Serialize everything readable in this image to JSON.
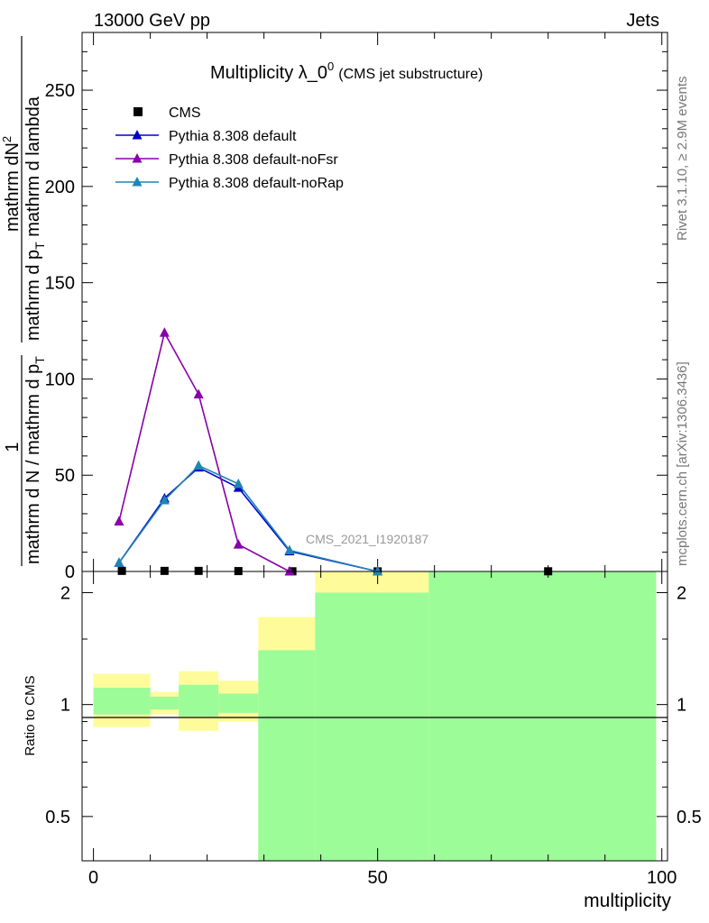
{
  "header": {
    "left": "13000 GeV pp",
    "right": "Jets"
  },
  "side_labels": {
    "rivet": "Rivet 3.1.10, ≥ 2.9M events",
    "mcplots": "mcplots.cern.ch [arXiv:1306.3436]"
  },
  "chart_data": [
    {
      "type": "line",
      "title": "Multiplicity λ_0",
      "title_sup": "0",
      "title_note": "(CMS jet substructure)",
      "watermark": "CMS_2021_I1920187",
      "ylabel_parts": {
        "num": "mathrm dN",
        "num_sup": "2",
        "den": "mathrm d p",
        "den_sub": "T",
        "den_tail": " mathrm d lambda",
        "factor_num": "1",
        "factor_den": "mathrm d N / mathrm d p",
        "factor_den_sub": "T"
      },
      "xlim": [
        -2,
        101
      ],
      "ylim": [
        0,
        280
      ],
      "yticks": [
        0,
        50,
        100,
        150,
        200,
        250
      ],
      "yticklabels": [
        "0",
        "50",
        "100",
        "150",
        "200",
        "250"
      ],
      "legend_position": "top-left",
      "series": [
        {
          "name": "CMS",
          "kind": "data",
          "color": "#000000",
          "x": [
            5,
            12.5,
            18.5,
            25.5,
            35,
            50,
            80
          ],
          "y": [
            0.3,
            0.3,
            0.3,
            0.2,
            0.1,
            0.05,
            0.1
          ]
        },
        {
          "name": "Pythia 8.308 default",
          "kind": "mc",
          "color": "#0000cc",
          "x": [
            4.5,
            12.5,
            18.5,
            25.5,
            34.5,
            50
          ],
          "y": [
            4.5,
            38,
            54,
            43.5,
            10.5,
            0
          ]
        },
        {
          "name": "Pythia 8.308 default-noFsr",
          "kind": "mc",
          "color": "#8800aa",
          "x": [
            4.5,
            12.5,
            18.5,
            25.5,
            34.5
          ],
          "y": [
            26,
            124,
            92,
            14,
            0
          ]
        },
        {
          "name": "Pythia 8.308 default-noRap",
          "kind": "mc",
          "color": "#1f86b4",
          "x": [
            4.5,
            12.5,
            18.5,
            25.5,
            34.5,
            50
          ],
          "y": [
            4.5,
            37,
            55,
            45.5,
            11,
            0
          ]
        }
      ]
    },
    {
      "type": "area",
      "ylabel": "Ratio to CMS",
      "xlabel": "multiplicity",
      "xlim": [
        -2,
        101
      ],
      "ylim": [
        0.38,
        2.28
      ],
      "xticks": [
        0,
        50,
        100
      ],
      "xticklabels": [
        "0",
        "50",
        "100"
      ],
      "yticks": [
        0.5,
        1,
        2
      ],
      "yticklabels": [
        "0.5",
        "1",
        "2"
      ],
      "reference_line": 1,
      "bands": [
        {
          "x0": 0,
          "x1": 10,
          "green": [
            0.94,
            1.11
          ],
          "yellow": [
            0.87,
            1.21
          ]
        },
        {
          "x0": 10,
          "x1": 15,
          "green": [
            0.97,
            1.05
          ],
          "yellow": [
            0.94,
            1.08
          ]
        },
        {
          "x0": 15,
          "x1": 22,
          "green": [
            0.93,
            1.13
          ],
          "yellow": [
            0.85,
            1.23
          ]
        },
        {
          "x0": 22,
          "x1": 29,
          "green": [
            0.95,
            1.07
          ],
          "yellow": [
            0.9,
            1.16
          ]
        },
        {
          "x0": 29,
          "x1": 39,
          "green": [
            0.38,
            1.4
          ],
          "yellow": [
            0.38,
            1.72
          ]
        },
        {
          "x0": 39,
          "x1": 59,
          "green": [
            0.38,
            2.0
          ],
          "yellow": [
            0.38,
            2.28
          ]
        },
        {
          "x0": 59,
          "x1": 99,
          "green": [
            0.38,
            2.28
          ],
          "yellow": [
            0.38,
            2.28
          ]
        }
      ],
      "band_colors": {
        "green": "#9cfc98",
        "yellow": "#fefc9a"
      }
    }
  ]
}
